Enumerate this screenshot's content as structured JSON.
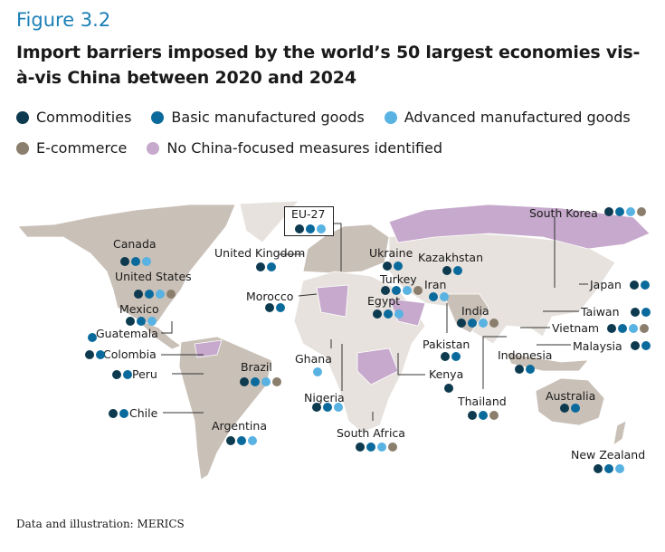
{
  "figure_label": "Figure 3.2",
  "title": "Import barriers imposed by the world’s 50 largest economies vis-à-vis China between 2020 and 2024",
  "colors": {
    "commodities": "#0d3a4f",
    "basic": "#0b6a9c",
    "advanced": "#58b2e2",
    "ecommerce": "#8b7e6d",
    "none": "#c6a9cc",
    "land": "#c9c0b7",
    "other_land": "#e7e2dd"
  },
  "legend": [
    {
      "key": "commodities",
      "label": "Commodities"
    },
    {
      "key": "basic",
      "label": "Basic manufactured goods"
    },
    {
      "key": "advanced",
      "label": "Advanced manufactured goods"
    },
    {
      "key": "ecommerce",
      "label": "E-commerce"
    },
    {
      "key": "none",
      "label": "No China-focused measures identified"
    }
  ],
  "countries": [
    {
      "name": "Canada",
      "m": [
        "commodities",
        "basic",
        "advanced"
      ]
    },
    {
      "name": "United States",
      "m": [
        "commodities",
        "basic",
        "advanced",
        "ecommerce"
      ]
    },
    {
      "name": "Mexico",
      "m": [
        "commodities",
        "basic",
        "advanced"
      ]
    },
    {
      "name": "Guatemala",
      "m": [
        "basic"
      ]
    },
    {
      "name": "Colombia",
      "m": [
        "commodities",
        "basic"
      ]
    },
    {
      "name": "Peru",
      "m": [
        "commodities",
        "basic"
      ]
    },
    {
      "name": "Chile",
      "m": [
        "commodities",
        "basic"
      ]
    },
    {
      "name": "Brazil",
      "m": [
        "commodities",
        "basic",
        "advanced",
        "ecommerce"
      ]
    },
    {
      "name": "Argentina",
      "m": [
        "commodities",
        "basic",
        "advanced"
      ]
    },
    {
      "name": "EU-27",
      "m": [
        "commodities",
        "basic",
        "advanced"
      ]
    },
    {
      "name": "United Kingdom",
      "m": [
        "commodities",
        "basic"
      ]
    },
    {
      "name": "Morocco",
      "m": [
        "commodities",
        "basic"
      ]
    },
    {
      "name": "Ghana",
      "m": [
        "advanced"
      ]
    },
    {
      "name": "Nigeria",
      "m": [
        "commodities",
        "basic",
        "advanced"
      ]
    },
    {
      "name": "Ukraine",
      "m": [
        "commodities",
        "basic"
      ]
    },
    {
      "name": "Kazakhstan",
      "m": [
        "commodities",
        "basic"
      ]
    },
    {
      "name": "Turkey",
      "m": [
        "commodities",
        "basic",
        "advanced",
        "ecommerce"
      ]
    },
    {
      "name": "Iran",
      "m": [
        "basic",
        "advanced"
      ]
    },
    {
      "name": "Egypt",
      "m": [
        "commodities",
        "basic",
        "advanced"
      ]
    },
    {
      "name": "India",
      "m": [
        "commodities",
        "basic",
        "advanced",
        "ecommerce"
      ]
    },
    {
      "name": "Pakistan",
      "m": [
        "commodities",
        "basic"
      ]
    },
    {
      "name": "Kenya",
      "m": [
        "commodities"
      ]
    },
    {
      "name": "Thailand",
      "m": [
        "commodities",
        "basic",
        "ecommerce"
      ]
    },
    {
      "name": "South Africa",
      "m": [
        "commodities",
        "basic",
        "advanced",
        "ecommerce"
      ]
    },
    {
      "name": "South Korea",
      "m": [
        "commodities",
        "basic",
        "advanced",
        "ecommerce"
      ]
    },
    {
      "name": "Japan",
      "m": [
        "commodities",
        "basic"
      ]
    },
    {
      "name": "Taiwan",
      "m": [
        "commodities",
        "basic"
      ]
    },
    {
      "name": "Vietnam",
      "m": [
        "commodities",
        "basic",
        "advanced",
        "ecommerce"
      ]
    },
    {
      "name": "Malaysia",
      "m": [
        "commodities",
        "basic"
      ]
    },
    {
      "name": "Indonesia",
      "m": [
        "commodities",
        "basic"
      ]
    },
    {
      "name": "Australia",
      "m": [
        "commodities",
        "basic"
      ]
    },
    {
      "name": "New Zealand",
      "m": [
        "commodities",
        "basic",
        "advanced"
      ]
    }
  ],
  "source": "Data and illustration: MERICS"
}
